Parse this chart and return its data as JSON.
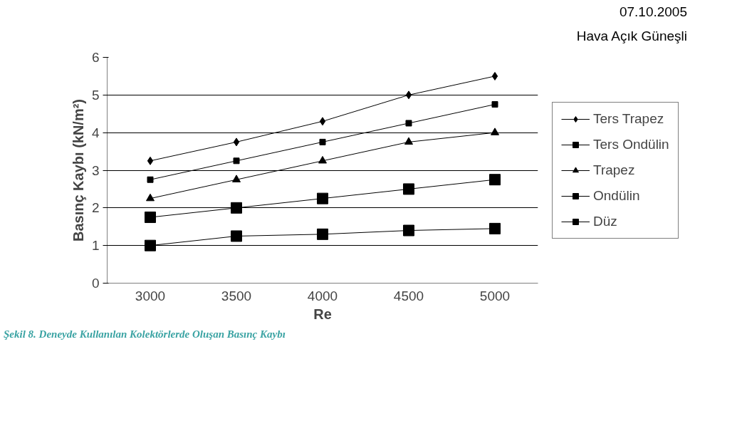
{
  "chart_data": {
    "type": "line",
    "xlabel": "Re",
    "ylabel": "Basınç Kaybı (kN/m²)",
    "categories": [
      "3000",
      "3500",
      "4000",
      "4500",
      "5000"
    ],
    "series": [
      {
        "name": "Ters Trapez",
        "color": "#000000",
        "marker": "diamond",
        "values": [
          3.25,
          3.75,
          4.3,
          5.0,
          5.5
        ]
      },
      {
        "name": "Ters Ondülin",
        "color": "#000000",
        "marker": "square",
        "values": [
          2.75,
          3.25,
          3.75,
          4.25,
          4.75
        ]
      },
      {
        "name": "Trapez",
        "color": "#000000",
        "marker": "triangle",
        "values": [
          2.25,
          2.75,
          3.25,
          3.75,
          4.0
        ]
      },
      {
        "name": "Ondülin",
        "color": "#000000",
        "marker": "square",
        "values": [
          1.75,
          2.0,
          2.25,
          2.5,
          2.75
        ]
      },
      {
        "name": "Düz",
        "color": "#000000",
        "marker": "square",
        "values": [
          1.0,
          1.25,
          1.3,
          1.4,
          1.45
        ]
      }
    ],
    "ylim": [
      0,
      6
    ],
    "yticks": [
      0,
      1,
      2,
      3,
      4,
      5,
      6
    ],
    "grid": "y",
    "legend": "right",
    "line_style": "solid",
    "annotations": [
      "07.10.2005",
      "Hava Açık Güneşli",
      "Şekil 8. Deneyde Kullanılan Kolektörlerde Oluşan Basınç Kaybı"
    ]
  }
}
